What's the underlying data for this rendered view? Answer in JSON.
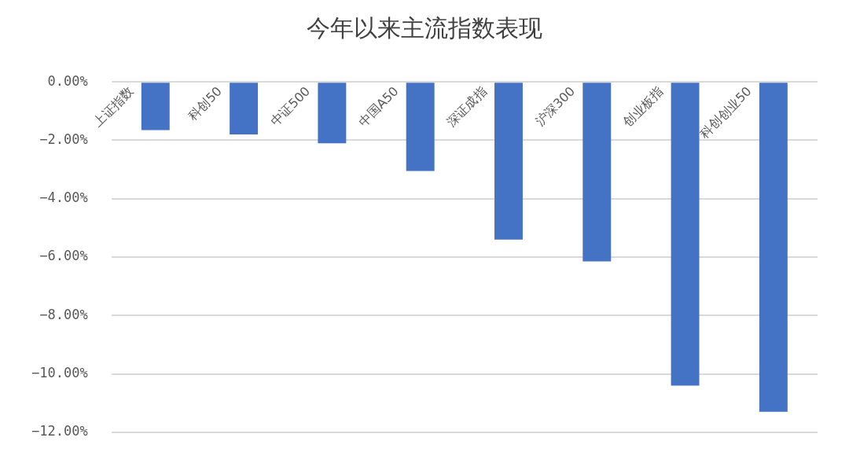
{
  "chart_data": {
    "type": "bar",
    "title": "今年以来主流指数表现",
    "categories": [
      "上证指数",
      "科创50",
      "中证500",
      "中国A50",
      "深证成指",
      "沪深300",
      "创业板指",
      "科创创业50"
    ],
    "values": [
      -1.65,
      -1.8,
      -2.1,
      -3.05,
      -5.4,
      -6.15,
      -10.4,
      -11.3
    ],
    "color": "#4472c4",
    "ylim": [
      -12,
      0
    ],
    "yticks": [
      {
        "value": 0,
        "label": "0.00%"
      },
      {
        "value": -2,
        "label": "−2.00%"
      },
      {
        "value": -4,
        "label": "−4.00%"
      },
      {
        "value": -6,
        "label": "−6.00%"
      },
      {
        "value": -8,
        "label": "−8.00%"
      },
      {
        "value": -10,
        "label": "−10.00%"
      },
      {
        "value": -12,
        "label": "−12.00%"
      }
    ],
    "grid": "y"
  }
}
